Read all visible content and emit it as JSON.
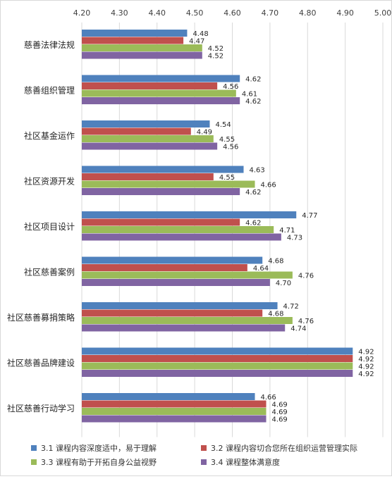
{
  "chart_data": {
    "type": "bar",
    "orientation": "horizontal",
    "categories": [
      "慈善法律法规",
      "慈善组织管理",
      "社区基金运作",
      "社区资源开发",
      "社区项目设计",
      "社区慈善案例",
      "社区慈善募捐策略",
      "社区慈善品牌建设",
      "社区慈善行动学习"
    ],
    "series": [
      {
        "name": "3.1 课程内容深度适中，易于理解",
        "color": "#4f81bd",
        "values": [
          4.48,
          4.62,
          4.54,
          4.63,
          4.77,
          4.68,
          4.72,
          4.92,
          4.66
        ]
      },
      {
        "name": "3.2 课程内容切合您所在组织运营管理实际",
        "color": "#c0504d",
        "values": [
          4.47,
          4.56,
          4.49,
          4.55,
          4.62,
          4.64,
          4.68,
          4.92,
          4.69
        ]
      },
      {
        "name": "3.3 课程有助于开拓自身公益视野",
        "color": "#9bbb59",
        "values": [
          4.52,
          4.61,
          4.55,
          4.66,
          4.71,
          4.76,
          4.76,
          4.92,
          4.69
        ]
      },
      {
        "name": "3.4 课程整体满意度",
        "color": "#8064a2",
        "values": [
          4.52,
          4.62,
          4.56,
          4.62,
          4.73,
          4.7,
          4.74,
          4.92,
          4.69
        ]
      }
    ],
    "xlim": [
      4.2,
      5.0
    ],
    "ticks": [
      "4.20",
      "4.30",
      "4.40",
      "4.50",
      "4.60",
      "4.70",
      "4.80",
      "4.90",
      "5.00"
    ],
    "grid": true,
    "legend": "bottom",
    "title": "",
    "xlabel": "",
    "ylabel": ""
  }
}
